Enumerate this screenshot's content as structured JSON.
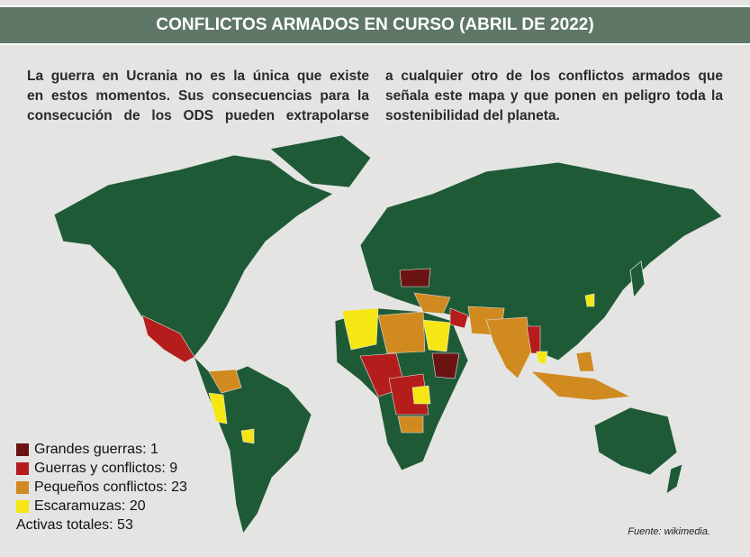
{
  "header": {
    "title": "CONFLICTOS ARMADOS EN CURSO (ABRIL DE 2022)"
  },
  "intro": {
    "left_lines": [
      "La guerra en Ucrania no es la única que existe",
      "en estos momentos. Sus consecuencias para la",
      "consecución de los ODS pueden extrapolarse"
    ],
    "right_lines": [
      "a cualquier otro de los conflictos armados que",
      "señala este mapa y que ponen en peligro toda la",
      "sostenibilidad del planeta."
    ]
  },
  "legend": {
    "items": [
      {
        "label": "Grandes guerras: 1",
        "color": "#6b1212"
      },
      {
        "label": "Guerras y conflictos: 9",
        "color": "#b51d1d"
      },
      {
        "label": "Pequeños conflictos: 23",
        "color": "#d08a1f"
      },
      {
        "label": "Escaramuzas: 20",
        "color": "#f6e714"
      }
    ],
    "total": "Activas totales: 53"
  },
  "source": "Fuente: wikimedia."
}
